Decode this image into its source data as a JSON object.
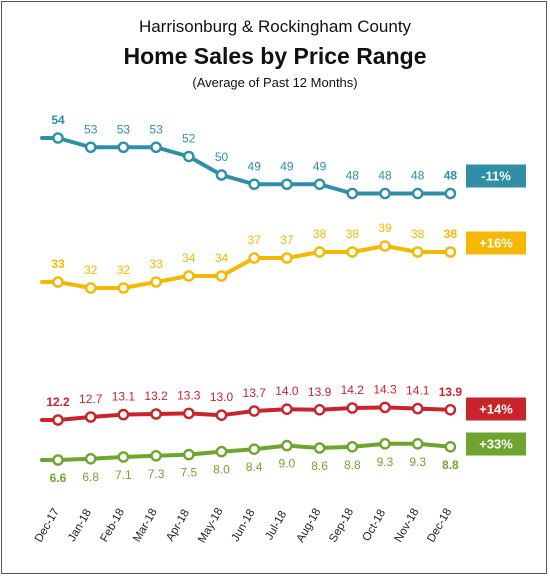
{
  "header": {
    "title_line1": "Harrisonburg & Rockingham County",
    "title_line2": "Home Sales by Price Range",
    "subtitle": "(Average of Past 12 Months)"
  },
  "chart_data": {
    "type": "line",
    "title": "Home Sales by Price Range",
    "subtitle": "(Average of Past 12 Months)",
    "x": [
      "Dec-17",
      "Jan-18",
      "Feb-18",
      "Mar-18",
      "Apr-18",
      "May-18",
      "Jun-18",
      "Jul-18",
      "Aug-18",
      "Sep-18",
      "Oct-18",
      "Nov-18",
      "Dec-18"
    ],
    "grid": false,
    "series": [
      {
        "color": "#2e8fa6",
        "change": "-11%",
        "values": [
          54,
          53,
          53,
          53,
          52,
          50,
          49,
          49,
          49,
          48,
          48,
          48,
          48
        ],
        "labels": [
          "54",
          "53",
          "53",
          "53",
          "52",
          "50",
          "49",
          "49",
          "49",
          "48",
          "48",
          "48",
          "48"
        ]
      },
      {
        "color": "#f5b800",
        "change": "+16%",
        "values": [
          33,
          32,
          32,
          33,
          34,
          34,
          37,
          37,
          38,
          38,
          39,
          38,
          38
        ],
        "labels": [
          "33",
          "32",
          "32",
          "33",
          "34",
          "34",
          "37",
          "37",
          "38",
          "38",
          "39",
          "38",
          "38"
        ]
      },
      {
        "color": "#c8252b",
        "change": "+14%",
        "values": [
          12.2,
          12.7,
          13.1,
          13.2,
          13.3,
          13.0,
          13.7,
          14.0,
          13.9,
          14.2,
          14.3,
          14.1,
          13.9
        ],
        "labels": [
          "12.2",
          "12.7",
          "13.1",
          "13.2",
          "13.3",
          "13.0",
          "13.7",
          "14.0",
          "13.9",
          "14.2",
          "14.3",
          "14.1",
          "13.9"
        ]
      },
      {
        "color": "#6fa52f",
        "change": "+33%",
        "values": [
          6.6,
          6.8,
          7.1,
          7.3,
          7.5,
          8.0,
          8.4,
          9.0,
          8.6,
          8.8,
          9.3,
          9.3,
          8.8
        ],
        "labels": [
          "6.6",
          "6.8",
          "7.1",
          "7.3",
          "7.5",
          "8.0",
          "8.4",
          "9.0",
          "8.6",
          "8.8",
          "9.3",
          "9.3",
          "8.8"
        ]
      }
    ]
  }
}
